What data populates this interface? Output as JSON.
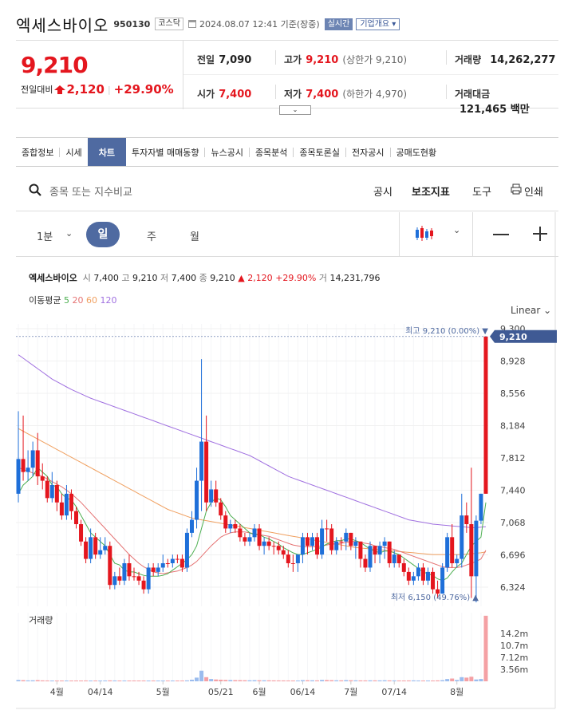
{
  "header": {
    "name": "엑세스바이오",
    "code": "950130",
    "market": "코스닥",
    "datetime": "2024.08.07 12:41 기준(장중)",
    "realtime": "실시간",
    "company_info": "기업개요 ▾"
  },
  "quote": {
    "price": "9,210",
    "change_label": "전일대비",
    "change": "2,120",
    "change_rate": "+29.90%",
    "prev_close_label": "전일",
    "prev_close": "7,090",
    "high_label": "고가",
    "high": "9,210",
    "upper_limit": "(상한가 9,210)",
    "volume_label": "거래량",
    "volume": "14,262,277",
    "open_label": "시가",
    "open": "7,400",
    "low_label": "저가",
    "low": "7,400",
    "lower_limit": "(하한가 4,970)",
    "amount_label": "거래대금",
    "amount": "121,465 백만"
  },
  "tabs": [
    "종합정보",
    "시세",
    "차트",
    "투자자별 매매동향",
    "뉴스공시",
    "종목분석",
    "종목토론실",
    "전자공시",
    "공매도현황"
  ],
  "toolbar": {
    "search_placeholder": "종목 또는 지수비교",
    "disclosure": "공시",
    "indicator": "보조지표",
    "tools": "도구",
    "print": "인쇄"
  },
  "periods": {
    "minute": "1분",
    "day": "일",
    "week": "주",
    "month": "월"
  },
  "info": {
    "name": "엑세스바이오",
    "open_l": "시",
    "open": "7,400",
    "high_l": "고",
    "high": "9,210",
    "low_l": "저",
    "low": "7,400",
    "close_l": "종",
    "close": "9,210",
    "change": "▲ 2,120",
    "rate": "+29.90%",
    "vol_l": "거",
    "vol": "14,231,796"
  },
  "ma": {
    "label": "이동평균",
    "p5": "5",
    "p20": "20",
    "p60": "60",
    "p120": "120"
  },
  "scale": "Linear",
  "colors": {
    "up": "#e4161e",
    "down": "#1e6fd9",
    "accent": "#4f6aa1",
    "ma5": "#4caf50",
    "ma20": "#e57373",
    "ma60": "#f0a060",
    "ma120": "#a070e0"
  },
  "chart_data": {
    "type": "candlestick",
    "y_ticks": [
      9300,
      8928,
      8556,
      8184,
      7812,
      7440,
      7068,
      6696,
      6324
    ],
    "y_tick_labels": [
      "9,300",
      "8,928",
      "8,556",
      "8,184",
      "7,812",
      "7,440",
      "7,068",
      "6,696",
      "6,324"
    ],
    "ylim": [
      6150,
      9300
    ],
    "current_label": "9,210",
    "max_label": "최고 9,210 (0.00%) ▼",
    "min_label": "최저 6,150 (49.76%) ▲",
    "x_labels": [
      {
        "i": 8,
        "t": "4월"
      },
      {
        "i": 17,
        "t": "04/14"
      },
      {
        "i": 30,
        "t": "5월"
      },
      {
        "i": 42,
        "t": "05/21"
      },
      {
        "i": 50,
        "t": "6월"
      },
      {
        "i": 59,
        "t": "06/14"
      },
      {
        "i": 69,
        "t": "7월"
      },
      {
        "i": 78,
        "t": "07/14"
      },
      {
        "i": 91,
        "t": "8월"
      }
    ],
    "volume_label": "거래량",
    "volume_ticks": [
      "14.2m",
      "10.7m",
      "7.12m",
      "3.56m"
    ],
    "volume_max": 14200000,
    "closes": [
      7400,
      7800,
      7650,
      7700,
      7900,
      7600,
      7550,
      7350,
      7500,
      7300,
      7150,
      7400,
      7200,
      7050,
      6850,
      6650,
      6900,
      6700,
      6750,
      6800,
      6350,
      6450,
      6400,
      6600,
      6450,
      6450,
      6400,
      6300,
      6550,
      6500,
      6550,
      6600,
      6600,
      6650,
      6650,
      6550,
      6950,
      7100,
      7550,
      8000,
      7300,
      7450,
      7300,
      7150,
      7000,
      7050,
      7000,
      6900,
      6850,
      6900,
      7000,
      6800,
      6850,
      6800,
      6800,
      6750,
      6700,
      6600,
      6600,
      6700,
      6900,
      6800,
      6900,
      6700,
      7000,
      7000,
      6750,
      6850,
      6850,
      6950,
      6800,
      6850,
      6650,
      6550,
      6800,
      6700,
      6800,
      6850,
      6600,
      6700,
      6600,
      6500,
      6400,
      6450,
      6550,
      6400,
      6500,
      6300,
      6250,
      6550,
      6900,
      6600,
      6650,
      7150,
      7050,
      6450,
      7090,
      9210
    ],
    "opens": [
      7800,
      7650,
      7700,
      7900,
      7600,
      7550,
      7350,
      7500,
      7300,
      7150,
      7400,
      7200,
      7050,
      6850,
      6650,
      6900,
      6700,
      6750,
      6800,
      6350,
      6450,
      6400,
      6600,
      6450,
      6450,
      6400,
      6300,
      6550,
      6500,
      6550,
      6600,
      6600,
      6650,
      6650,
      6550,
      6950,
      7100,
      7550,
      8000,
      7300,
      7450,
      7300,
      7150,
      7000,
      7050,
      7000,
      6900,
      6850,
      6900,
      7000,
      6800,
      6850,
      6800,
      6800,
      6750,
      6700,
      6600,
      6600,
      6700,
      6900,
      6800,
      6900,
      6700,
      7000,
      7000,
      6750,
      6850,
      6850,
      6950,
      6800,
      6850,
      6650,
      6550,
      6800,
      6700,
      6800,
      6850,
      6600,
      6700,
      6600,
      6500,
      6400,
      6450,
      6550,
      6400,
      6500,
      6300,
      6250,
      6550,
      6900,
      6600,
      6650,
      7150,
      7050,
      6450,
      7090,
      7400,
      7400
    ],
    "highs": [
      8350,
      8300,
      7900,
      8000,
      8100,
      7750,
      7600,
      7650,
      7550,
      7400,
      7500,
      7450,
      7250,
      7100,
      6900,
      7000,
      6950,
      6900,
      6900,
      6850,
      6500,
      6550,
      6650,
      6700,
      6550,
      6500,
      6450,
      6600,
      6600,
      6600,
      6700,
      6650,
      6700,
      6700,
      6700,
      7000,
      7200,
      7700,
      8950,
      8300,
      7550,
      7550,
      7350,
      7200,
      7100,
      7100,
      7050,
      6950,
      6950,
      7050,
      7050,
      6900,
      6900,
      6850,
      6850,
      6800,
      6750,
      6700,
      6700,
      6950,
      6950,
      6950,
      6950,
      7100,
      7100,
      7050,
      6900,
      6900,
      7000,
      6950,
      6900,
      6850,
      6700,
      6850,
      6800,
      6850,
      6900,
      6850,
      6750,
      6700,
      6650,
      6550,
      6500,
      6600,
      6600,
      6550,
      6550,
      6400,
      6600,
      6950,
      7050,
      6700,
      7400,
      7300,
      7700,
      7150,
      7400,
      9210
    ],
    "lows": [
      7300,
      7550,
      7550,
      7600,
      7500,
      7450,
      7300,
      7300,
      7200,
      7100,
      7100,
      7100,
      7000,
      6800,
      6600,
      6600,
      6650,
      6650,
      6700,
      6300,
      6300,
      6350,
      6350,
      6400,
      6400,
      6350,
      6250,
      6250,
      6450,
      6450,
      6500,
      6550,
      6550,
      6600,
      6500,
      6500,
      6900,
      7000,
      7200,
      7200,
      7250,
      7250,
      7100,
      6950,
      6950,
      6950,
      6850,
      6800,
      6800,
      6850,
      6750,
      6700,
      6750,
      6700,
      6700,
      6650,
      6550,
      6500,
      6500,
      6600,
      6700,
      6750,
      6650,
      6650,
      6850,
      6700,
      6700,
      6750,
      6750,
      6750,
      6650,
      6550,
      6500,
      6500,
      6600,
      6600,
      6650,
      6550,
      6550,
      6550,
      6450,
      6350,
      6350,
      6400,
      6350,
      6350,
      6250,
      6200,
      6250,
      6500,
      6550,
      6550,
      6550,
      6950,
      6200,
      6150,
      7050,
      7400
    ],
    "ma5": [
      7400,
      7500,
      7550,
      7600,
      7700,
      7650,
      7600,
      7500,
      7480,
      7400,
      7350,
      7330,
      7250,
      7150,
      7050,
      6950,
      6900,
      6850,
      6800,
      6700,
      6600,
      6580,
      6520,
      6500,
      6500,
      6480,
      6460,
      6450,
      6450,
      6450,
      6460,
      6480,
      6520,
      6560,
      6600,
      6640,
      6700,
      6800,
      7000,
      7200,
      7300,
      7350,
      7330,
      7250,
      7150,
      7100,
      7050,
      7000,
      6950,
      6930,
      6930,
      6900,
      6880,
      6850,
      6820,
      6780,
      6750,
      6720,
      6700,
      6700,
      6720,
      6740,
      6760,
      6790,
      6820,
      6840,
      6860,
      6860,
      6880,
      6880,
      6860,
      6840,
      6800,
      6760,
      6740,
      6720,
      6740,
      6740,
      6720,
      6700,
      6660,
      6620,
      6580,
      6540,
      6500,
      6480,
      6460,
      6420,
      6400,
      6430,
      6500,
      6560,
      6600,
      6700,
      6800,
      6850,
      6900,
      7300
    ],
    "ma20": [
      7700,
      7680,
      7660,
      7640,
      7620,
      7600,
      7570,
      7540,
      7510,
      7480,
      7440,
      7400,
      7350,
      7300,
      7240,
      7180,
      7120,
      7060,
      7000,
      6940,
      6880,
      6820,
      6760,
      6700,
      6650,
      6600,
      6560,
      6530,
      6500,
      6490,
      6480,
      6490,
      6500,
      6510,
      6530,
      6550,
      6580,
      6620,
      6680,
      6740,
      6800,
      6850,
      6900,
      6930,
      6950,
      6960,
      6960,
      6960,
      6950,
      6940,
      6930,
      6920,
      6910,
      6890,
      6870,
      6850,
      6830,
      6810,
      6800,
      6790,
      6790,
      6790,
      6790,
      6800,
      6810,
      6820,
      6820,
      6830,
      6840,
      6850,
      6850,
      6840,
      6830,
      6820,
      6800,
      6790,
      6780,
      6770,
      6760,
      6740,
      6720,
      6700,
      6680,
      6660,
      6640,
      6620,
      6600,
      6580,
      6560,
      6550,
      6550,
      6550,
      6560,
      6580,
      6600,
      6620,
      6650,
      6750
    ],
    "ma60": [
      8150,
      8120,
      8090,
      8060,
      8030,
      8000,
      7970,
      7940,
      7910,
      7880,
      7850,
      7820,
      7790,
      7760,
      7730,
      7700,
      7670,
      7640,
      7610,
      7580,
      7550,
      7520,
      7490,
      7460,
      7430,
      7400,
      7370,
      7340,
      7310,
      7280,
      7250,
      7220,
      7200,
      7180,
      7160,
      7140,
      7120,
      7110,
      7100,
      7090,
      7080,
      7070,
      7060,
      7050,
      7040,
      7030,
      7020,
      7010,
      7000,
      6990,
      6980,
      6970,
      6960,
      6950,
      6940,
      6930,
      6920,
      6910,
      6900,
      6890,
      6880,
      6870,
      6860,
      6850,
      6840,
      6830,
      6820,
      6810,
      6800,
      6790,
      6780,
      6775,
      6770,
      6765,
      6760,
      6755,
      6750,
      6745,
      6740,
      6735,
      6730,
      6725,
      6720,
      6715,
      6710,
      6705,
      6700,
      6700,
      6700,
      6700,
      6700,
      6700,
      6700,
      6705,
      6710,
      6715,
      6720,
      6730
    ],
    "ma120": [
      9000,
      8960,
      8920,
      8880,
      8840,
      8800,
      8760,
      8720,
      8690,
      8660,
      8630,
      8600,
      8575,
      8550,
      8525,
      8500,
      8480,
      8460,
      8440,
      8420,
      8400,
      8380,
      8360,
      8340,
      8320,
      8300,
      8280,
      8260,
      8240,
      8220,
      8200,
      8180,
      8160,
      8140,
      8120,
      8100,
      8080,
      8060,
      8040,
      8020,
      8000,
      7980,
      7960,
      7940,
      7920,
      7900,
      7880,
      7860,
      7840,
      7810,
      7780,
      7750,
      7720,
      7690,
      7660,
      7630,
      7600,
      7580,
      7560,
      7540,
      7520,
      7500,
      7480,
      7460,
      7440,
      7420,
      7400,
      7380,
      7360,
      7340,
      7320,
      7300,
      7280,
      7260,
      7240,
      7220,
      7200,
      7180,
      7160,
      7140,
      7120,
      7100,
      7090,
      7080,
      7070,
      7060,
      7050,
      7045,
      7040,
      7035,
      7030,
      7025,
      7020,
      7015,
      7010,
      7010,
      7015,
      7020
    ],
    "volumes": [
      300000,
      250000,
      200000,
      220000,
      260000,
      200000,
      180000,
      150000,
      170000,
      140000,
      160000,
      130000,
      120000,
      150000,
      180000,
      170000,
      150000,
      140000,
      130000,
      200000,
      180000,
      150000,
      140000,
      130000,
      120000,
      110000,
      130000,
      150000,
      140000,
      130000,
      120000,
      150000,
      160000,
      140000,
      150000,
      200000,
      350000,
      800000,
      2300000,
      900000,
      500000,
      400000,
      350000,
      300000,
      280000,
      260000,
      250000,
      230000,
      220000,
      240000,
      230000,
      220000,
      210000,
      200000,
      190000,
      190000,
      180000,
      180000,
      170000,
      250000,
      230000,
      220000,
      200000,
      300000,
      280000,
      250000,
      220000,
      210000,
      260000,
      230000,
      210000,
      200000,
      190000,
      210000,
      200000,
      200000,
      220000,
      200000,
      190000,
      180000,
      170000,
      190000,
      200000,
      180000,
      170000,
      180000,
      160000,
      200000,
      250000,
      500000,
      600000,
      300000,
      900000,
      800000,
      1000000,
      400000,
      500000,
      14231796
    ]
  }
}
